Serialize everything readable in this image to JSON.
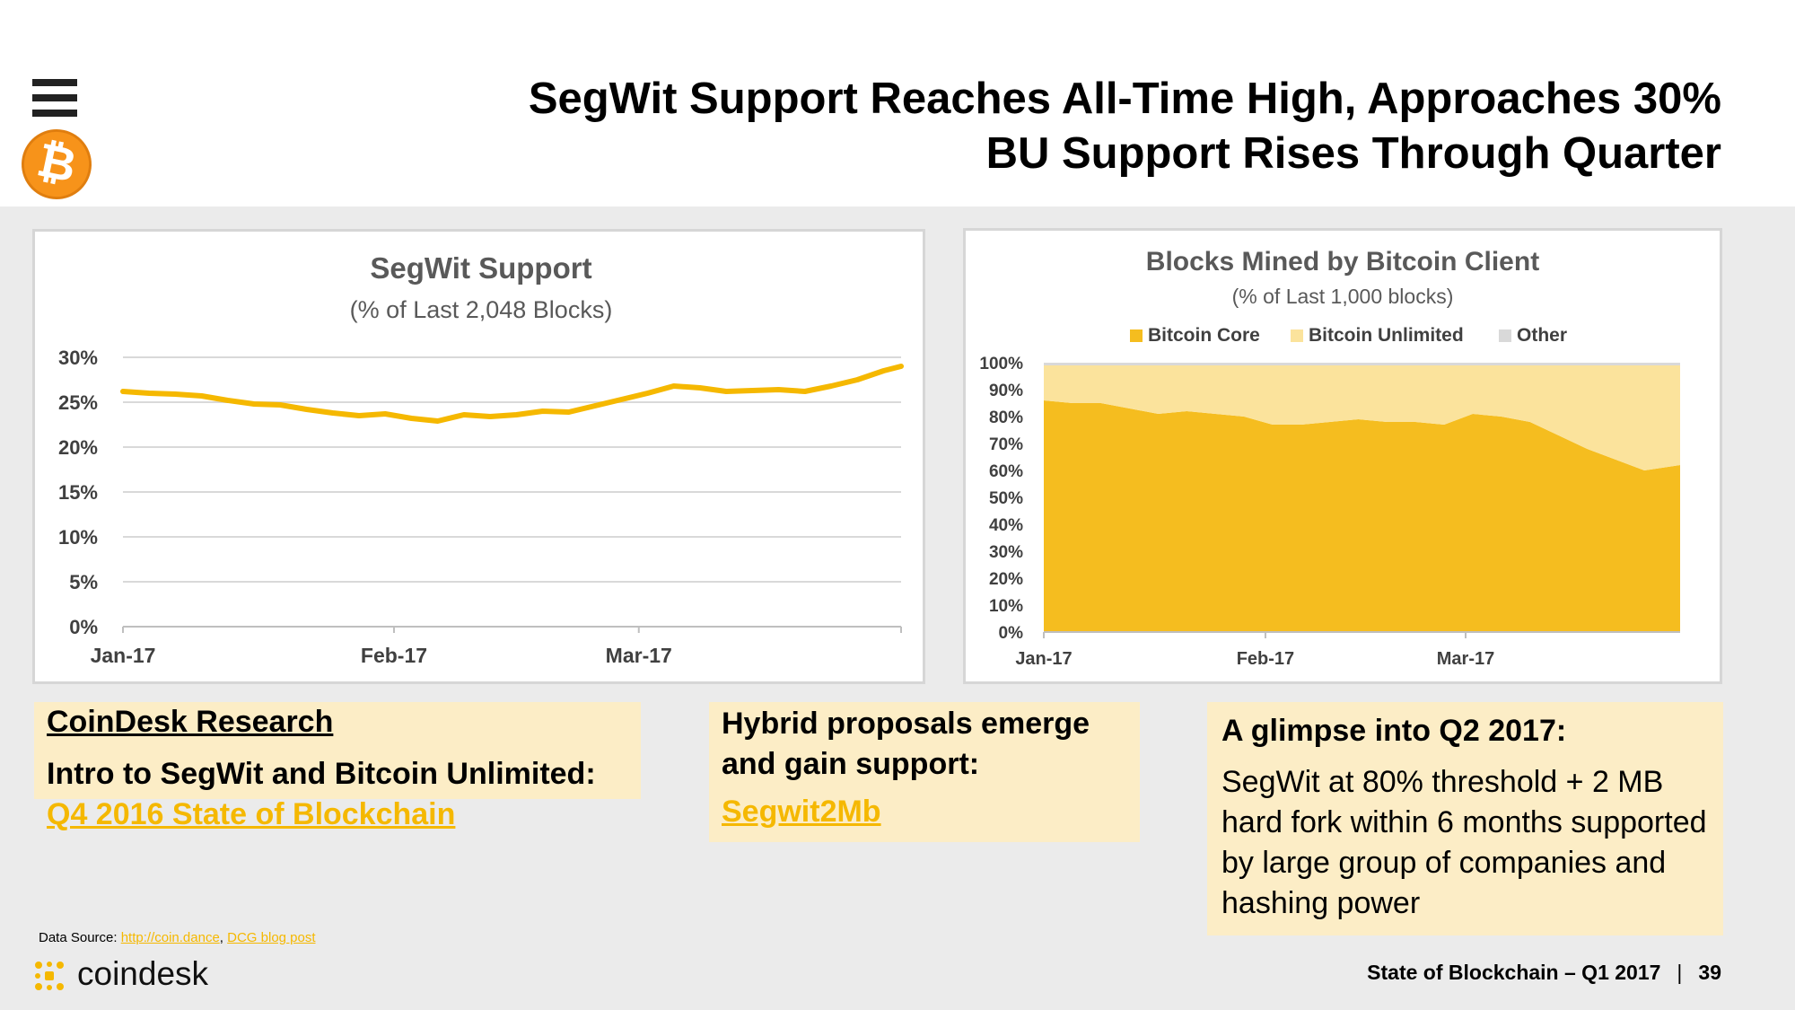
{
  "header": {
    "title_line1": "SegWit Support Reaches All-Time High, Approaches 30%",
    "title_line2": "BU Support Rises Through Quarter",
    "menu_icon": "hamburger-menu-icon",
    "logo_icon": "bitcoin-logo",
    "logo_glyph": "₿"
  },
  "chart_data": [
    {
      "type": "line",
      "title": "SegWit Support",
      "subtitle": "(% of Last 2,048 Blocks)",
      "x_tick_labels": [
        "Jan-17",
        "Feb-17",
        "Mar-17"
      ],
      "y_tick_labels": [
        "30%",
        "25%",
        "20%",
        "15%",
        "10%",
        "5%",
        "0%"
      ],
      "ylim": [
        0,
        30
      ],
      "grid": true,
      "color": "#f5b800",
      "series": [
        {
          "x": [
            "2017-01-01",
            "2017-01-04",
            "2017-01-07",
            "2017-01-10",
            "2017-01-13",
            "2017-01-16",
            "2017-01-19",
            "2017-01-22",
            "2017-01-25",
            "2017-01-28",
            "2017-01-31",
            "2017-02-03",
            "2017-02-06",
            "2017-02-09",
            "2017-02-12",
            "2017-02-15",
            "2017-02-18",
            "2017-02-21",
            "2017-02-24",
            "2017-02-27",
            "2017-03-02",
            "2017-03-05",
            "2017-03-08",
            "2017-03-11",
            "2017-03-14",
            "2017-03-17",
            "2017-03-20",
            "2017-03-23",
            "2017-03-26",
            "2017-03-29",
            "2017-03-31"
          ],
          "values": [
            26.2,
            26.0,
            25.9,
            25.7,
            25.2,
            24.8,
            24.7,
            24.2,
            23.8,
            23.5,
            23.7,
            23.2,
            22.9,
            23.6,
            23.4,
            23.6,
            24.0,
            23.9,
            24.6,
            25.3,
            26.0,
            26.8,
            26.6,
            26.2,
            26.3,
            26.4,
            26.2,
            26.8,
            27.5,
            28.5,
            29.0
          ]
        }
      ]
    },
    {
      "type": "area",
      "title": "Blocks Mined by Bitcoin Client",
      "subtitle": "(% of Last 1,000 blocks)",
      "x_tick_labels": [
        "Jan-17",
        "Feb-17",
        "Mar-17"
      ],
      "y_tick_labels": [
        "100%",
        "90%",
        "80%",
        "70%",
        "60%",
        "50%",
        "40%",
        "30%",
        "20%",
        "10%",
        "0%"
      ],
      "ylim": [
        0,
        100
      ],
      "stacked": true,
      "legend_position": "top",
      "x": [
        "2017-01-01",
        "2017-01-05",
        "2017-01-09",
        "2017-01-13",
        "2017-01-17",
        "2017-01-21",
        "2017-01-25",
        "2017-01-29",
        "2017-02-02",
        "2017-02-06",
        "2017-02-10",
        "2017-02-14",
        "2017-02-18",
        "2017-02-22",
        "2017-02-26",
        "2017-03-02",
        "2017-03-06",
        "2017-03-10",
        "2017-03-14",
        "2017-03-18",
        "2017-03-22",
        "2017-03-26",
        "2017-03-31"
      ],
      "series": [
        {
          "name": "Bitcoin Core",
          "color": "#f5bd1f",
          "values": [
            86,
            85,
            85,
            83,
            81,
            82,
            81,
            80,
            77,
            77,
            78,
            79,
            78,
            78,
            77,
            81,
            80,
            78,
            73,
            68,
            64,
            60,
            62
          ]
        },
        {
          "name": "Bitcoin Unlimited",
          "color": "#fbe39c",
          "values": [
            13,
            14,
            14,
            16,
            18,
            17,
            18,
            19,
            22,
            22,
            21,
            20,
            21,
            21,
            22,
            18,
            19,
            21,
            26,
            31,
            35,
            39,
            37
          ]
        },
        {
          "name": "Other",
          "color": "#d9d9d9",
          "values": [
            1,
            1,
            1,
            1,
            1,
            1,
            1,
            1,
            1,
            1,
            1,
            1,
            1,
            1,
            1,
            1,
            1,
            1,
            1,
            1,
            1,
            1,
            1
          ]
        }
      ]
    }
  ],
  "notes": {
    "research": {
      "heading": "CoinDesk Research",
      "subheading": "Intro to SegWit and Bitcoin Unlimited:",
      "link": "Q4 2016 State of Blockchain"
    },
    "hybrid": {
      "heading": "Hybrid proposals emerge and gain support:",
      "link": "Segwit2Mb"
    },
    "q2": {
      "heading": "A glimpse into Q2 2017:",
      "body": "SegWit at 80% threshold + 2 MB hard fork within 6 months supported by large group of companies and hashing power"
    }
  },
  "source": {
    "label": "Data Source: ",
    "link1": "http://coin.dance",
    "separator": ", ",
    "link2": "DCG blog post"
  },
  "brand": {
    "name": "coindesk",
    "icon": "coindesk-logo-icon"
  },
  "footer": {
    "text": "State of Blockchain – Q1 2017",
    "divider": "|",
    "page": "39"
  }
}
